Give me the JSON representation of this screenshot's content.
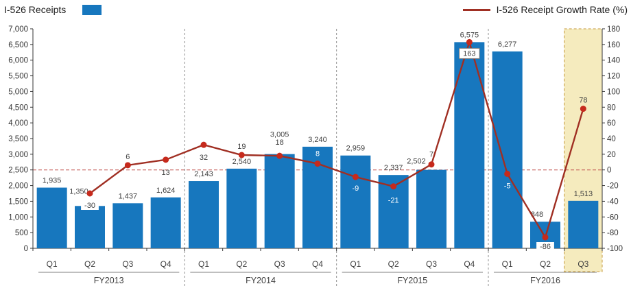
{
  "legend": {
    "receipts_label": "I-526 Receipts",
    "growth_label": "I-526 Receipt Growth Rate (%)"
  },
  "colors": {
    "bar": "#1777BE",
    "line": "#A02F23",
    "marker": "#C62A1C",
    "zero_line": "#C0504D",
    "separator": "#909090",
    "highlight_fill": "#F5EBBE",
    "highlight_border": "#C59A3D",
    "axis": "#333333",
    "label_text": "#3F3F3F",
    "underline": "#7F7F7F",
    "box_border": "#7F7F7F"
  },
  "chart_data": {
    "type": "bar+line",
    "groups": [
      {
        "label": "FY2013",
        "quarters": [
          "Q1",
          "Q2",
          "Q3",
          "Q4"
        ]
      },
      {
        "label": "FY2014",
        "quarters": [
          "Q1",
          "Q2",
          "Q3",
          "Q4"
        ]
      },
      {
        "label": "FY2015",
        "quarters": [
          "Q1",
          "Q2",
          "Q3",
          "Q4"
        ]
      },
      {
        "label": "FY2016",
        "quarters": [
          "Q1",
          "Q2",
          "Q3"
        ]
      }
    ],
    "series": [
      {
        "name": "I-526 Receipts",
        "type": "bar",
        "axis": "left",
        "values": [
          1935,
          1350,
          1437,
          1624,
          2143,
          2540,
          3005,
          3240,
          2959,
          2337,
          2502,
          6575,
          6277,
          848,
          1513
        ],
        "labels": [
          "1,935",
          "1,350",
          "1,437",
          "1,624",
          "2,143",
          "2,540",
          "3,005",
          "3,240",
          "2,959",
          "2,337",
          "2,502",
          "6,575",
          "6,277",
          "848",
          "1,513"
        ]
      },
      {
        "name": "I-526 Receipt Growth Rate (%)",
        "type": "line",
        "axis": "right",
        "values": [
          null,
          -30,
          6,
          13,
          32,
          19,
          18,
          8,
          -9,
          -21,
          7,
          163,
          -5,
          -86,
          78
        ],
        "labels": [
          null,
          "-30",
          "6",
          "13",
          "32",
          "19",
          "18",
          "8",
          "-9",
          "-21",
          "7",
          "163",
          "-5",
          "-86",
          "78"
        ]
      }
    ],
    "left_axis": {
      "min": 0,
      "max": 7000,
      "step": 500,
      "tick_labels": [
        "0",
        "500",
        "1,000",
        "1,500",
        "2,000",
        "2,500",
        "3,000",
        "3,500",
        "4,000",
        "4,500",
        "5,000",
        "5,500",
        "6,000",
        "6,500",
        "7,000"
      ]
    },
    "right_axis": {
      "min": -100,
      "max": 180,
      "step": 20,
      "tick_labels": [
        "-100",
        "-80",
        "-60",
        "-40",
        "-20",
        "0",
        "20",
        "40",
        "60",
        "80",
        "100",
        "120",
        "140",
        "160",
        "180"
      ]
    },
    "reference_line": {
      "axis": "right",
      "value": 0,
      "style": "dashed"
    },
    "highlight": {
      "group": "FY2016",
      "quarter": "Q3"
    }
  }
}
